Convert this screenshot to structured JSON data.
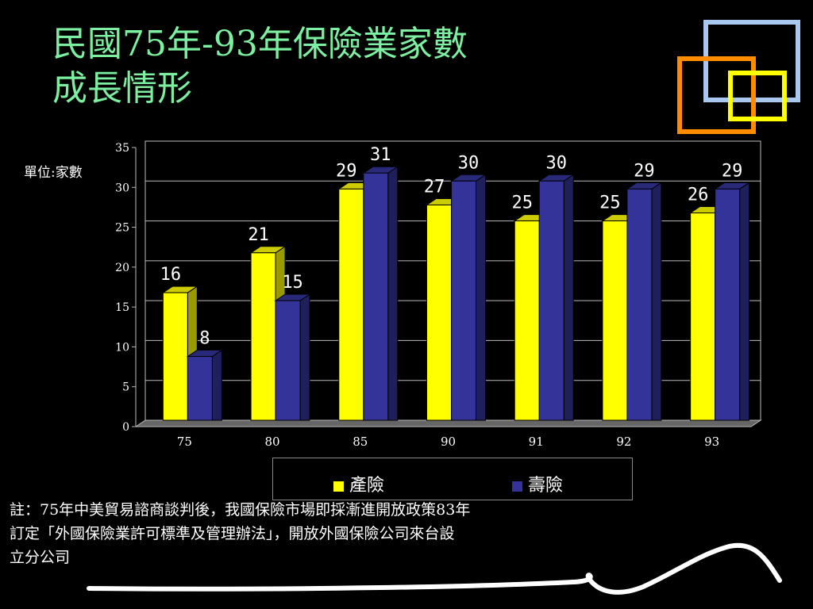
{
  "slide": {
    "title_line1": "民國75年-93年保險業家數",
    "title_line2": "成長情形",
    "unit_label": "單位:家數",
    "note_line1": "註：75年中美貿易諮商談判後，我國保險市場即採漸進開放政策83年",
    "note_line2": "訂定「外國保險業許可標準及管理辦法」，開放外國保險公司來台設",
    "note_line3": "立分公司"
  },
  "chart_data": {
    "type": "bar",
    "categories": [
      "75",
      "80",
      "85",
      "90",
      "91",
      "92",
      "93"
    ],
    "series": [
      {
        "name": "產險",
        "values": [
          16,
          21,
          29,
          27,
          25,
          25,
          26
        ],
        "color": "#ffff00"
      },
      {
        "name": "壽險",
        "values": [
          8,
          15,
          31,
          30,
          30,
          29,
          29
        ],
        "color": "#333399"
      }
    ],
    "ylim": [
      0,
      35
    ],
    "yticks": [
      0,
      5,
      10,
      15,
      20,
      25,
      30,
      35
    ],
    "grid": true,
    "legend_position": "bottom"
  }
}
